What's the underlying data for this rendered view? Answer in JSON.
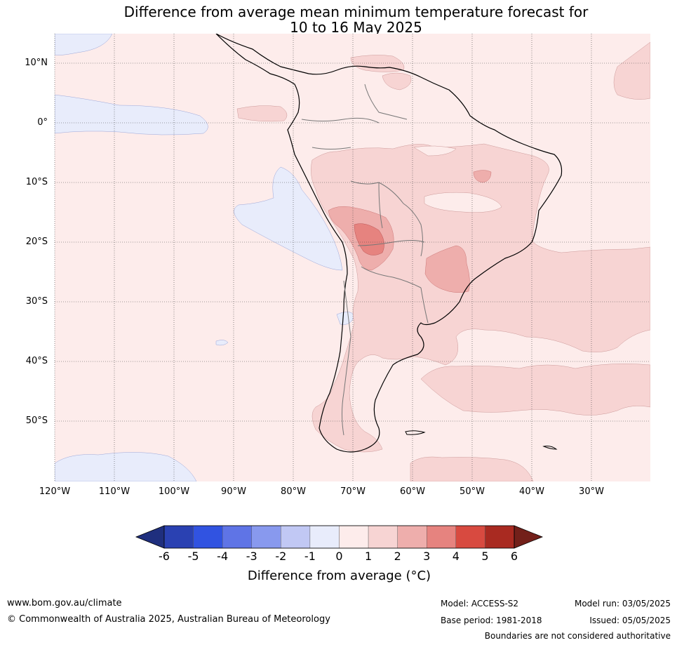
{
  "title": {
    "line1": "Difference from average mean minimum temperature forecast for",
    "line2": "10 to 16 May 2025"
  },
  "map": {
    "latitude_labels": [
      "10°N",
      "0°",
      "10°S",
      "20°S",
      "30°S",
      "40°S",
      "50°S"
    ],
    "longitude_labels": [
      "120°W",
      "110°W",
      "100°W",
      "90°W",
      "80°W",
      "70°W",
      "60°W",
      "50°W",
      "40°W",
      "30°W"
    ],
    "extent": {
      "lon_min": -120,
      "lon_max": -20,
      "lat_min": -60,
      "lat_max": 15
    },
    "gridlines": true,
    "background_anomaly_class": "0 to 1",
    "regions": [
      {
        "name": "south-america-interior-warm",
        "class": "1 to 2"
      },
      {
        "name": "bolivia-warm-core",
        "class": "2 to 3"
      },
      {
        "name": "chaco-hotspot",
        "class": "3 to 4"
      },
      {
        "name": "southern-brazil-warm",
        "class": "2 to 3"
      },
      {
        "name": "patagonia-warm",
        "class": "1 to 2"
      },
      {
        "name": "south-atlantic-warm",
        "class": "1 to 2"
      },
      {
        "name": "eastern-pacific-cool",
        "class": "-1 to 0"
      },
      {
        "name": "peru-offshore-cool",
        "class": "-1 to 0"
      },
      {
        "name": "southern-pacific-cool",
        "class": "-1 to 0"
      }
    ]
  },
  "colorbar": {
    "ticks": [
      "-6",
      "-5",
      "-4",
      "-3",
      "-2",
      "-1",
      "0",
      "1",
      "2",
      "3",
      "4",
      "5",
      "6"
    ],
    "label": "Difference from average (°C)",
    "colors": [
      "#1f2f7e",
      "#2a41b2",
      "#3153e1",
      "#5f74e6",
      "#8899ee",
      "#c1c8f4",
      "#e8ecfb",
      "#fdeceb",
      "#f7d4d3",
      "#eeaeac",
      "#e6837f",
      "#d84a40",
      "#a92a21",
      "#73201a"
    ]
  },
  "footer": {
    "website": "www.bom.gov.au/climate",
    "copyright": "© Commonwealth of Australia 2025, Australian Bureau of Meteorology",
    "model": "Model: ACCESS-S2",
    "base_period": "Base period: 1981-2018",
    "model_run": "Model run: 03/05/2025",
    "issued": "Issued: 05/05/2025",
    "disclaimer": "Boundaries are not considered authoritative"
  }
}
